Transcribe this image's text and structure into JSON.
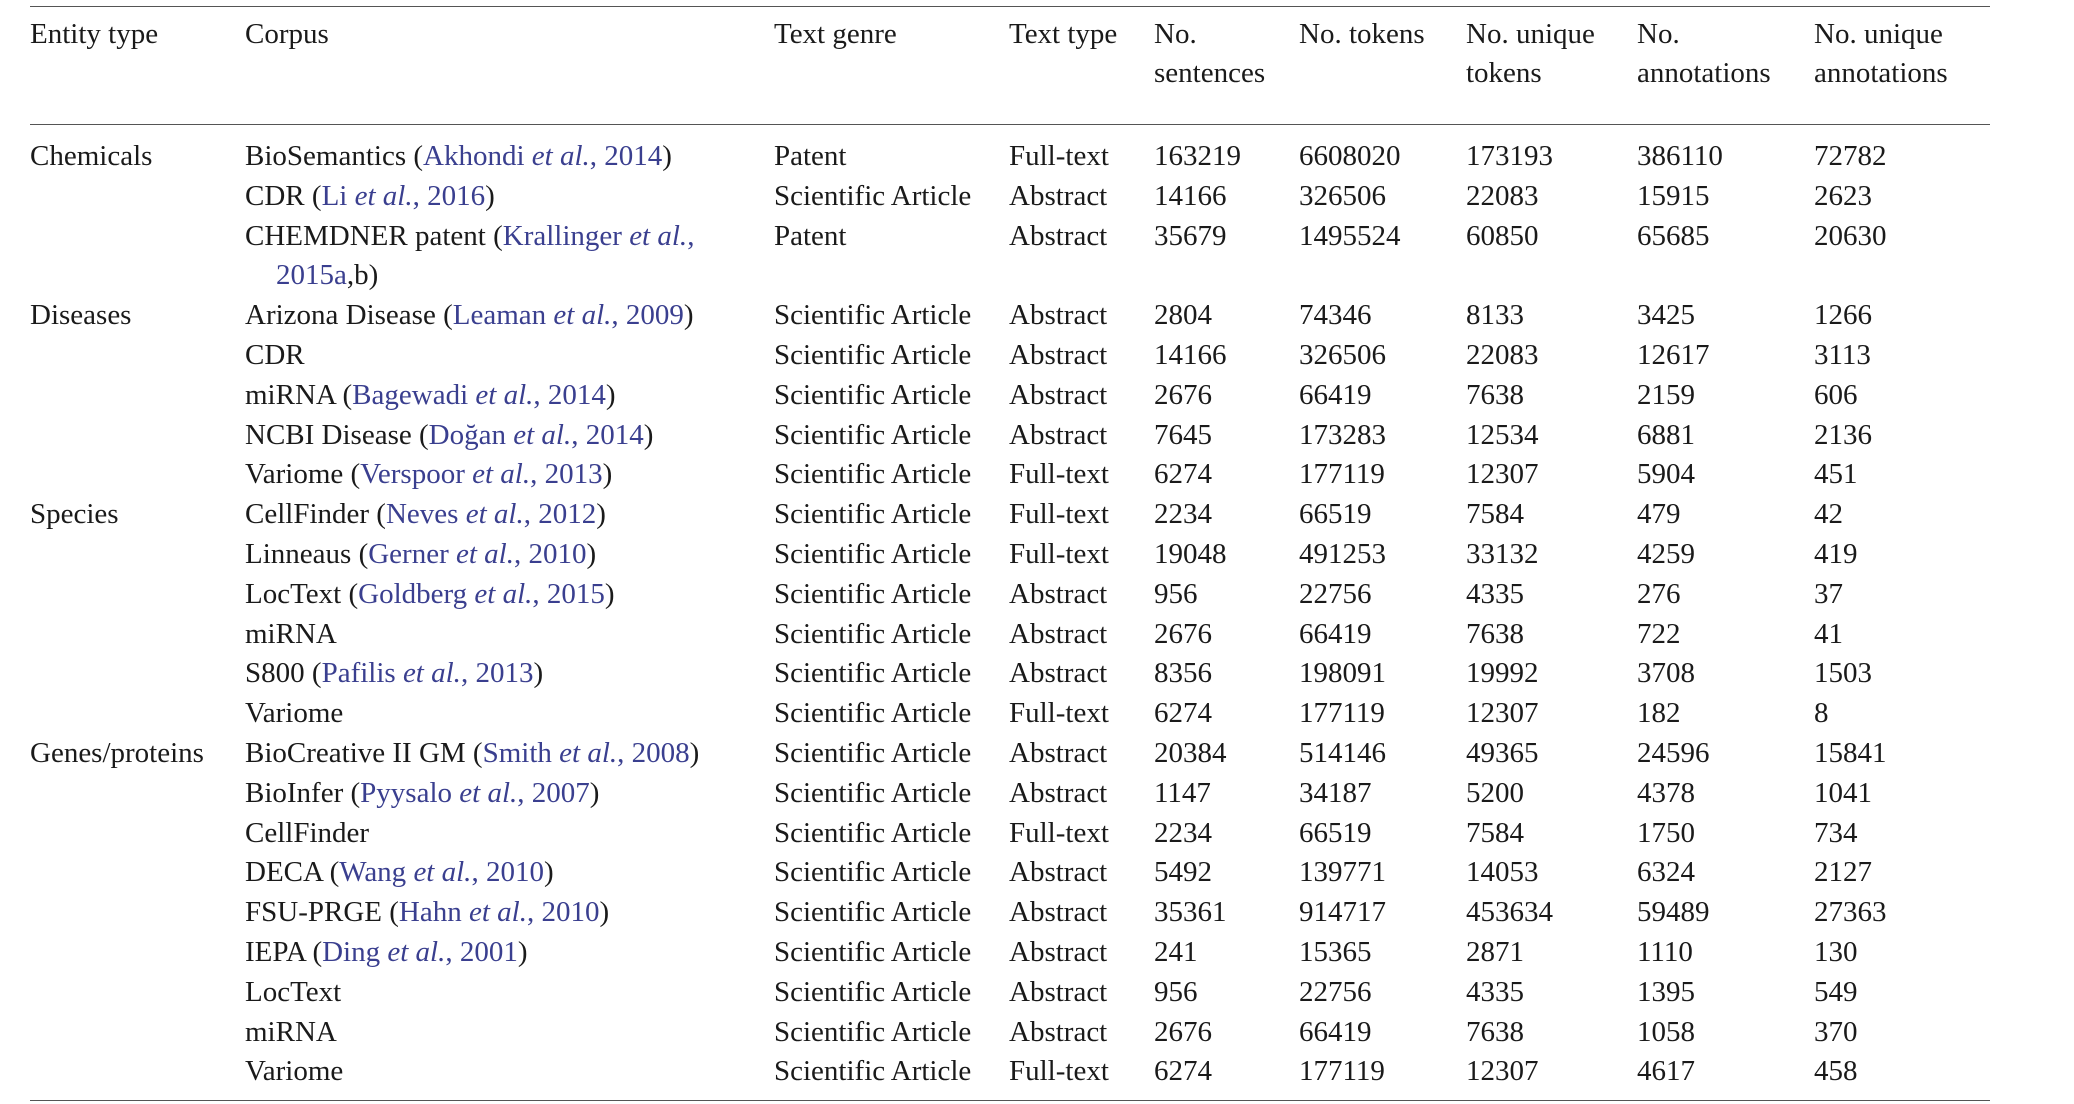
{
  "header": {
    "entity_type": "Entity type",
    "corpus": "Corpus",
    "text_genre": "Text genre",
    "text_type": "Text type",
    "no_sentences": [
      "No.",
      "sentences"
    ],
    "no_tokens": "No. tokens",
    "no_unique_tokens": [
      "No. unique",
      "tokens"
    ],
    "no_annotations": [
      "No.",
      "annotations"
    ],
    "no_unique_annotations": [
      "No. unique",
      "annotations"
    ]
  },
  "rows": [
    {
      "entity": "Chemicals",
      "corpus": "BioSemantics",
      "cite_author": "Akhondi",
      "cite_year": "2014",
      "genre": "Patent",
      "type": "Full-text",
      "sentences": "163219",
      "tokens": "6608020",
      "unique_tokens": "173193",
      "annotations": "386110",
      "unique_annotations": "72782"
    },
    {
      "entity": "",
      "corpus": "CDR",
      "cite_author": "Li",
      "cite_year": "2016",
      "genre": "Scientific Article",
      "type": "Abstract",
      "sentences": "14166",
      "tokens": "326506",
      "unique_tokens": "22083",
      "annotations": "15915",
      "unique_annotations": "2623"
    },
    {
      "entity": "",
      "corpus": "CHEMDNER patent",
      "cite_author": "Krallinger",
      "cite_year": "2015a",
      "cite_suffix": ",b",
      "genre": "Patent",
      "type": "Abstract",
      "sentences": "35679",
      "tokens": "1495524",
      "unique_tokens": "60850",
      "annotations": "65685",
      "unique_annotations": "20630"
    },
    {
      "entity": "Diseases",
      "corpus": "Arizona Disease",
      "cite_author": "Leaman",
      "cite_year": "2009",
      "genre": "Scientific Article",
      "type": "Abstract",
      "sentences": "2804",
      "tokens": "74346",
      "unique_tokens": "8133",
      "annotations": "3425",
      "unique_annotations": "1266"
    },
    {
      "entity": "",
      "corpus": "CDR",
      "genre": "Scientific Article",
      "type": "Abstract",
      "sentences": "14166",
      "tokens": "326506",
      "unique_tokens": "22083",
      "annotations": "12617",
      "unique_annotations": "3113"
    },
    {
      "entity": "",
      "corpus": "miRNA",
      "cite_author": "Bagewadi",
      "cite_year": "2014",
      "genre": "Scientific Article",
      "type": "Abstract",
      "sentences": "2676",
      "tokens": "66419",
      "unique_tokens": "7638",
      "annotations": "2159",
      "unique_annotations": "606"
    },
    {
      "entity": "",
      "corpus": "NCBI Disease",
      "cite_author": "Doğan",
      "cite_year": "2014",
      "genre": "Scientific Article",
      "type": "Abstract",
      "sentences": "7645",
      "tokens": "173283",
      "unique_tokens": "12534",
      "annotations": "6881",
      "unique_annotations": "2136"
    },
    {
      "entity": "",
      "corpus": "Variome",
      "cite_author": "Verspoor",
      "cite_year": "2013",
      "genre": "Scientific Article",
      "type": "Full-text",
      "sentences": "6274",
      "tokens": "177119",
      "unique_tokens": "12307",
      "annotations": "5904",
      "unique_annotations": "451"
    },
    {
      "entity": "Species",
      "corpus": "CellFinder",
      "cite_author": "Neves",
      "cite_year": "2012",
      "genre": "Scientific Article",
      "type": "Full-text",
      "sentences": "2234",
      "tokens": "66519",
      "unique_tokens": "7584",
      "annotations": "479",
      "unique_annotations": "42"
    },
    {
      "entity": "",
      "corpus": "Linneaus",
      "cite_author": "Gerner",
      "cite_year": "2010",
      "genre": "Scientific Article",
      "type": "Full-text",
      "sentences": "19048",
      "tokens": "491253",
      "unique_tokens": "33132",
      "annotations": "4259",
      "unique_annotations": "419"
    },
    {
      "entity": "",
      "corpus": "LocText",
      "cite_author": "Goldberg",
      "cite_year": "2015",
      "genre": "Scientific Article",
      "type": "Abstract",
      "sentences": "956",
      "tokens": "22756",
      "unique_tokens": "4335",
      "annotations": "276",
      "unique_annotations": "37"
    },
    {
      "entity": "",
      "corpus": "miRNA",
      "genre": "Scientific Article",
      "type": "Abstract",
      "sentences": "2676",
      "tokens": "66419",
      "unique_tokens": "7638",
      "annotations": "722",
      "unique_annotations": "41"
    },
    {
      "entity": "",
      "corpus": "S800",
      "cite_author": "Pafilis",
      "cite_year": "2013",
      "genre": "Scientific Article",
      "type": "Abstract",
      "sentences": "8356",
      "tokens": "198091",
      "unique_tokens": "19992",
      "annotations": "3708",
      "unique_annotations": "1503"
    },
    {
      "entity": "",
      "corpus": "Variome",
      "genre": "Scientific Article",
      "type": "Full-text",
      "sentences": "6274",
      "tokens": "177119",
      "unique_tokens": "12307",
      "annotations": "182",
      "unique_annotations": "8"
    },
    {
      "entity": "Genes/proteins",
      "corpus": "BioCreative II GM",
      "cite_author": "Smith",
      "cite_year": "2008",
      "genre": "Scientific Article",
      "type": "Abstract",
      "sentences": "20384",
      "tokens": "514146",
      "unique_tokens": "49365",
      "annotations": "24596",
      "unique_annotations": "15841"
    },
    {
      "entity": "",
      "corpus": "BioInfer",
      "cite_author": "Pyysalo",
      "cite_year": "2007",
      "genre": "Scientific Article",
      "type": "Abstract",
      "sentences": "1147",
      "tokens": "34187",
      "unique_tokens": "5200",
      "annotations": "4378",
      "unique_annotations": "1041"
    },
    {
      "entity": "",
      "corpus": "CellFinder",
      "genre": "Scientific Article",
      "type": "Full-text",
      "sentences": "2234",
      "tokens": "66519",
      "unique_tokens": "7584",
      "annotations": "1750",
      "unique_annotations": "734"
    },
    {
      "entity": "",
      "corpus": "DECA",
      "cite_author": "Wang",
      "cite_year": "2010",
      "genre": "Scientific Article",
      "type": "Abstract",
      "sentences": "5492",
      "tokens": "139771",
      "unique_tokens": "14053",
      "annotations": "6324",
      "unique_annotations": "2127"
    },
    {
      "entity": "",
      "corpus": "FSU-PRGE",
      "cite_author": "Hahn",
      "cite_year": "2010",
      "genre": "Scientific Article",
      "type": "Abstract",
      "sentences": "35361",
      "tokens": "914717",
      "unique_tokens": "453634",
      "annotations": "59489",
      "unique_annotations": "27363"
    },
    {
      "entity": "",
      "corpus": "IEPA",
      "cite_author": "Ding",
      "cite_year": "2001",
      "genre": "Scientific Article",
      "type": "Abstract",
      "sentences": "241",
      "tokens": "15365",
      "unique_tokens": "2871",
      "annotations": "1110",
      "unique_annotations": "130"
    },
    {
      "entity": "",
      "corpus": "LocText",
      "genre": "Scientific Article",
      "type": "Abstract",
      "sentences": "956",
      "tokens": "22756",
      "unique_tokens": "4335",
      "annotations": "1395",
      "unique_annotations": "549"
    },
    {
      "entity": "",
      "corpus": "miRNA",
      "genre": "Scientific Article",
      "type": "Abstract",
      "sentences": "2676",
      "tokens": "66419",
      "unique_tokens": "7638",
      "annotations": "1058",
      "unique_annotations": "370"
    },
    {
      "entity": "",
      "corpus": "Variome",
      "genre": "Scientific Article",
      "type": "Full-text",
      "sentences": "6274",
      "tokens": "177119",
      "unique_tokens": "12307",
      "annotations": "4617",
      "unique_annotations": "458"
    }
  ],
  "cite_etal": "et al.",
  "colors": {
    "citation": "#3a3f8f",
    "text": "#1a1a1a",
    "rule": "#555555"
  }
}
